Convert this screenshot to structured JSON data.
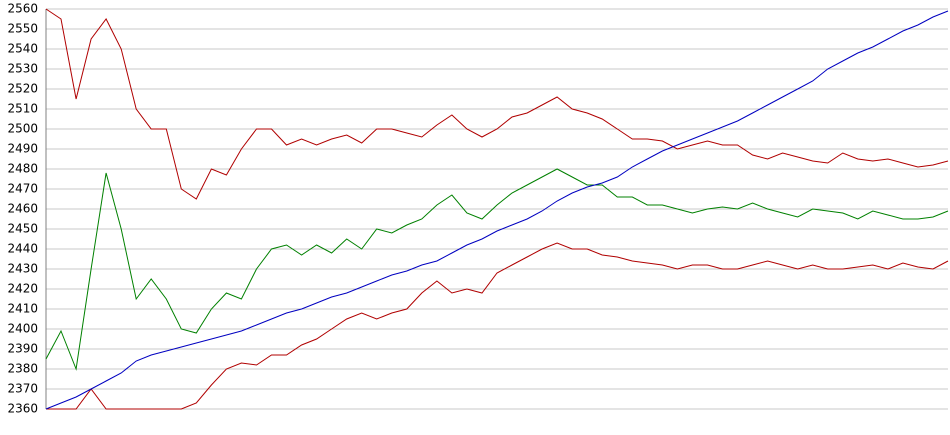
{
  "chart_data": {
    "type": "line",
    "ylim": [
      2360,
      2560
    ],
    "yticks": [
      2360,
      2370,
      2380,
      2390,
      2400,
      2410,
      2420,
      2430,
      2440,
      2450,
      2460,
      2470,
      2480,
      2490,
      2500,
      2510,
      2520,
      2530,
      2540,
      2550,
      2560
    ],
    "grid": true,
    "series": [
      {
        "color": "#b00000",
        "values": [
          2560,
          2555,
          2515,
          2545,
          2555,
          2540,
          2510,
          2500,
          2500,
          2470,
          2465,
          2480,
          2477,
          2490,
          2500,
          2500,
          2492,
          2495,
          2492,
          2495,
          2497,
          2493,
          2500,
          2500,
          2498,
          2496,
          2502,
          2507,
          2500,
          2496,
          2500,
          2506,
          2508,
          2512,
          2516,
          2510,
          2508,
          2505,
          2500,
          2495,
          2495,
          2494,
          2490,
          2492,
          2494,
          2492,
          2492,
          2487,
          2485,
          2488,
          2486,
          2484,
          2483,
          2488,
          2485,
          2484,
          2485,
          2483,
          2481,
          2482,
          2484
        ]
      },
      {
        "color": "#008000",
        "values": [
          2385,
          2399,
          2380,
          2430,
          2478,
          2450,
          2415,
          2425,
          2415,
          2400,
          2398,
          2410,
          2418,
          2415,
          2430,
          2440,
          2442,
          2437,
          2442,
          2438,
          2445,
          2440,
          2450,
          2448,
          2452,
          2455,
          2462,
          2467,
          2458,
          2455,
          2462,
          2468,
          2472,
          2476,
          2480,
          2476,
          2472,
          2472,
          2466,
          2466,
          2462,
          2462,
          2460,
          2458,
          2460,
          2461,
          2460,
          2463,
          2460,
          2458,
          2456,
          2460,
          2459,
          2458,
          2455,
          2459,
          2457,
          2455,
          2455,
          2456,
          2459
        ]
      },
      {
        "color": "#b00000",
        "values": [
          2360,
          2360,
          2360,
          2370,
          2360,
          2360,
          2360,
          2360,
          2360,
          2360,
          2363,
          2372,
          2380,
          2383,
          2382,
          2387,
          2387,
          2392,
          2395,
          2400,
          2405,
          2408,
          2405,
          2408,
          2410,
          2418,
          2424,
          2418,
          2420,
          2418,
          2428,
          2432,
          2436,
          2440,
          2443,
          2440,
          2440,
          2437,
          2436,
          2434,
          2433,
          2432,
          2430,
          2432,
          2432,
          2430,
          2430,
          2432,
          2434,
          2432,
          2430,
          2432,
          2430,
          2430,
          2431,
          2432,
          2430,
          2433,
          2431,
          2430,
          2434
        ]
      },
      {
        "color": "#0000c0",
        "values": [
          2360,
          2363,
          2366,
          2370,
          2374,
          2378,
          2384,
          2387,
          2389,
          2391,
          2393,
          2395,
          2397,
          2399,
          2402,
          2405,
          2408,
          2410,
          2413,
          2416,
          2418,
          2421,
          2424,
          2427,
          2429,
          2432,
          2434,
          2438,
          2442,
          2445,
          2449,
          2452,
          2455,
          2459,
          2464,
          2468,
          2471,
          2473,
          2476,
          2481,
          2485,
          2489,
          2492,
          2495,
          2498,
          2501,
          2504,
          2508,
          2512,
          2516,
          2520,
          2524,
          2530,
          2534,
          2538,
          2541,
          2545,
          2549,
          2552,
          2556,
          2559
        ]
      }
    ]
  }
}
